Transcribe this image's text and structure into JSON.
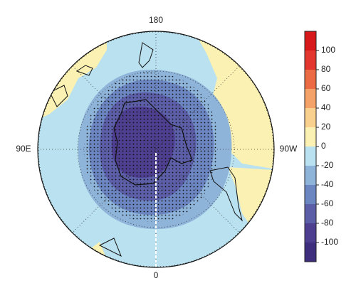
{
  "map": {
    "labels": {
      "top": "180",
      "left": "90E",
      "right": "90W",
      "bottom": "0"
    }
  },
  "colorbar": {
    "lim": [
      -120,
      120
    ],
    "bounds": [
      -120,
      -100,
      -80,
      -60,
      -40,
      -20,
      0,
      20,
      40,
      60,
      80,
      100,
      120
    ],
    "colors": [
      "#3f2d7d",
      "#4e3f91",
      "#5c5ea8",
      "#6c86c2",
      "#8fb4da",
      "#b9e1ef",
      "#fbf1b3",
      "#f9d08e",
      "#f4a268",
      "#ec6a44",
      "#e3362f",
      "#d7191c"
    ],
    "ticks": [
      100,
      80,
      60,
      40,
      20,
      0,
      -20,
      -40,
      -60,
      -80,
      -100
    ]
  }
}
